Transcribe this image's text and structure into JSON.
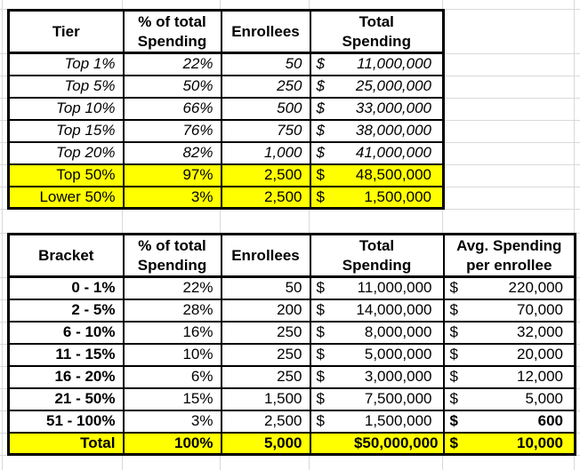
{
  "colors": {
    "highlight": "#FFFF00",
    "border": "#000000",
    "gridline": "#D9D9D9",
    "background": "#FFFFFF",
    "text": "#000000"
  },
  "table1": {
    "headers": [
      "Tier",
      "% of total\nSpending",
      "Enrollees",
      "Total\nSpending"
    ],
    "rows": [
      {
        "tier": "Top 1%",
        "pct": "22%",
        "enr": "50",
        "cur": "$",
        "total": "11,000,000",
        "hl": false,
        "it": true
      },
      {
        "tier": "Top 5%",
        "pct": "50%",
        "enr": "250",
        "cur": "$",
        "total": "25,000,000",
        "hl": false,
        "it": true
      },
      {
        "tier": "Top 10%",
        "pct": "66%",
        "enr": "500",
        "cur": "$",
        "total": "33,000,000",
        "hl": false,
        "it": true
      },
      {
        "tier": "Top 15%",
        "pct": "76%",
        "enr": "750",
        "cur": "$",
        "total": "38,000,000",
        "hl": false,
        "it": true
      },
      {
        "tier": "Top 20%",
        "pct": "82%",
        "enr": "1,000",
        "cur": "$",
        "total": "41,000,000",
        "hl": false,
        "it": true
      },
      {
        "tier": "Top 50%",
        "pct": "97%",
        "enr": "2,500",
        "cur": "$",
        "total": "48,500,000",
        "hl": true,
        "it": false
      },
      {
        "tier": "Lower 50%",
        "pct": "3%",
        "enr": "2,500",
        "cur": "$",
        "total": "1,500,000",
        "hl": true,
        "it": false
      }
    ]
  },
  "table2": {
    "headers": [
      "Bracket",
      "% of total\nSpending",
      "Enrollees",
      "Total\nSpending",
      "Avg. Spending\nper enrollee"
    ],
    "rows": [
      {
        "bracket": "0 - 1%",
        "pct": "22%",
        "enr": "50",
        "cur": "$",
        "total": "11,000,000",
        "acur": "$",
        "avg": "220,000",
        "hl": false,
        "bold_row": false,
        "bold_avg": false
      },
      {
        "bracket": "2 - 5%",
        "pct": "28%",
        "enr": "200",
        "cur": "$",
        "total": "14,000,000",
        "acur": "$",
        "avg": "70,000",
        "hl": false,
        "bold_row": false,
        "bold_avg": false
      },
      {
        "bracket": "6 - 10%",
        "pct": "16%",
        "enr": "250",
        "cur": "$",
        "total": "8,000,000",
        "acur": "$",
        "avg": "32,000",
        "hl": false,
        "bold_row": false,
        "bold_avg": false
      },
      {
        "bracket": "11 - 15%",
        "pct": "10%",
        "enr": "250",
        "cur": "$",
        "total": "5,000,000",
        "acur": "$",
        "avg": "20,000",
        "hl": false,
        "bold_row": false,
        "bold_avg": false
      },
      {
        "bracket": "16 - 20%",
        "pct": "6%",
        "enr": "250",
        "cur": "$",
        "total": "3,000,000",
        "acur": "$",
        "avg": "12,000",
        "hl": false,
        "bold_row": false,
        "bold_avg": false
      },
      {
        "bracket": "21 - 50%",
        "pct": "15%",
        "enr": "1,500",
        "cur": "$",
        "total": "7,500,000",
        "acur": "$",
        "avg": "5,000",
        "hl": false,
        "bold_row": false,
        "bold_avg": false
      },
      {
        "bracket": "51 - 100%",
        "pct": "3%",
        "enr": "2,500",
        "cur": "$",
        "total": "1,500,000",
        "acur": "$",
        "avg": "600",
        "hl": false,
        "bold_row": false,
        "bold_avg": true
      },
      {
        "bracket": "Total",
        "pct": "100%",
        "enr": "5,000",
        "cur": "",
        "total": "$50,000,000",
        "acur": "$",
        "avg": "10,000",
        "hl": true,
        "bold_row": true,
        "bold_avg": false
      }
    ]
  }
}
